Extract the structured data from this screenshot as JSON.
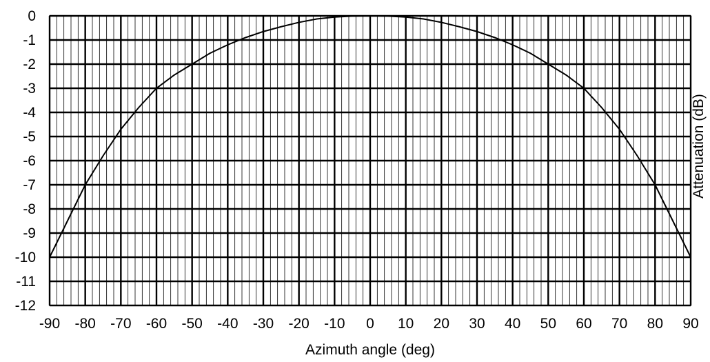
{
  "chart_data": {
    "type": "line",
    "xlabel": "Azimuth angle (deg)",
    "ylabel": "Attenuation (dB)",
    "xlim": [
      -90,
      90
    ],
    "ylim": [
      -12,
      0
    ],
    "x_major_step": 10,
    "x_minor_step": 2,
    "y_major_step": 1,
    "x_ticks": [
      "-90",
      "-80",
      "-70",
      "-60",
      "-50",
      "-40",
      "-30",
      "-20",
      "-10",
      "0",
      "10",
      "20",
      "30",
      "40",
      "50",
      "60",
      "70",
      "80",
      "90"
    ],
    "y_ticks": [
      "0",
      "-1",
      "-2",
      "-3",
      "-4",
      "-5",
      "-6",
      "-7",
      "-8",
      "-9",
      "-10",
      "-11",
      "-12"
    ],
    "grid": true,
    "series": [
      {
        "x": [
          -90,
          -85,
          -80,
          -75,
          -70,
          -65,
          -60,
          -55,
          -50,
          -45,
          -40,
          -35,
          -30,
          -25,
          -20,
          -15,
          -10,
          -5,
          0,
          5,
          10,
          15,
          20,
          25,
          30,
          35,
          40,
          45,
          50,
          55,
          60,
          65,
          70,
          75,
          80,
          85,
          90
        ],
        "values": [
          -10,
          -8.5,
          -7,
          -5.8,
          -4.7,
          -3.8,
          -3,
          -2.45,
          -2,
          -1.55,
          -1.2,
          -0.9,
          -0.65,
          -0.45,
          -0.27,
          -0.13,
          -0.05,
          -0.01,
          0,
          -0.01,
          -0.05,
          -0.13,
          -0.27,
          -0.45,
          -0.65,
          -0.9,
          -1.2,
          -1.55,
          -2,
          -2.45,
          -3,
          -3.8,
          -4.7,
          -5.8,
          -7,
          -8.5,
          -10
        ]
      }
    ]
  }
}
